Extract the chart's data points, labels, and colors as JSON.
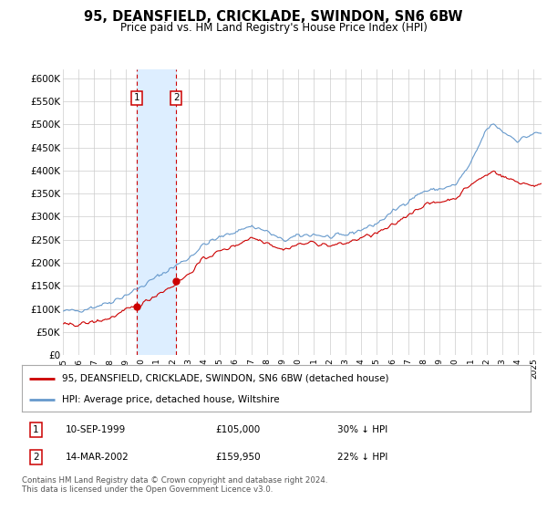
{
  "title": "95, DEANSFIELD, CRICKLADE, SWINDON, SN6 6BW",
  "subtitle": "Price paid vs. HM Land Registry's House Price Index (HPI)",
  "ylim": [
    0,
    620000
  ],
  "yticks": [
    0,
    50000,
    100000,
    150000,
    200000,
    250000,
    300000,
    350000,
    400000,
    450000,
    500000,
    550000,
    600000
  ],
  "xlim_start": 1995.0,
  "xlim_end": 2025.5,
  "x_year_ticks": [
    1995,
    1996,
    1997,
    1998,
    1999,
    2000,
    2001,
    2002,
    2003,
    2004,
    2005,
    2006,
    2007,
    2008,
    2009,
    2010,
    2011,
    2012,
    2013,
    2014,
    2015,
    2016,
    2017,
    2018,
    2019,
    2020,
    2021,
    2022,
    2023,
    2024,
    2025
  ],
  "sale1_x": 1999.71,
  "sale1_y": 105000,
  "sale2_x": 2002.21,
  "sale2_y": 159950,
  "shade_color": "#ddeeff",
  "red_color": "#cc0000",
  "blue_color": "#6699cc",
  "grid_color": "#cccccc",
  "background_color": "#ffffff",
  "legend_red": "95, DEANSFIELD, CRICKLADE, SWINDON, SN6 6BW (detached house)",
  "legend_blue": "HPI: Average price, detached house, Wiltshire",
  "annotation1_label": "1",
  "annotation1_date": "10-SEP-1999",
  "annotation1_price": "£105,000",
  "annotation1_hpi": "30% ↓ HPI",
  "annotation2_label": "2",
  "annotation2_date": "14-MAR-2002",
  "annotation2_price": "£159,950",
  "annotation2_hpi": "22% ↓ HPI",
  "footer": "Contains HM Land Registry data © Crown copyright and database right 2024.\nThis data is licensed under the Open Government Licence v3.0."
}
